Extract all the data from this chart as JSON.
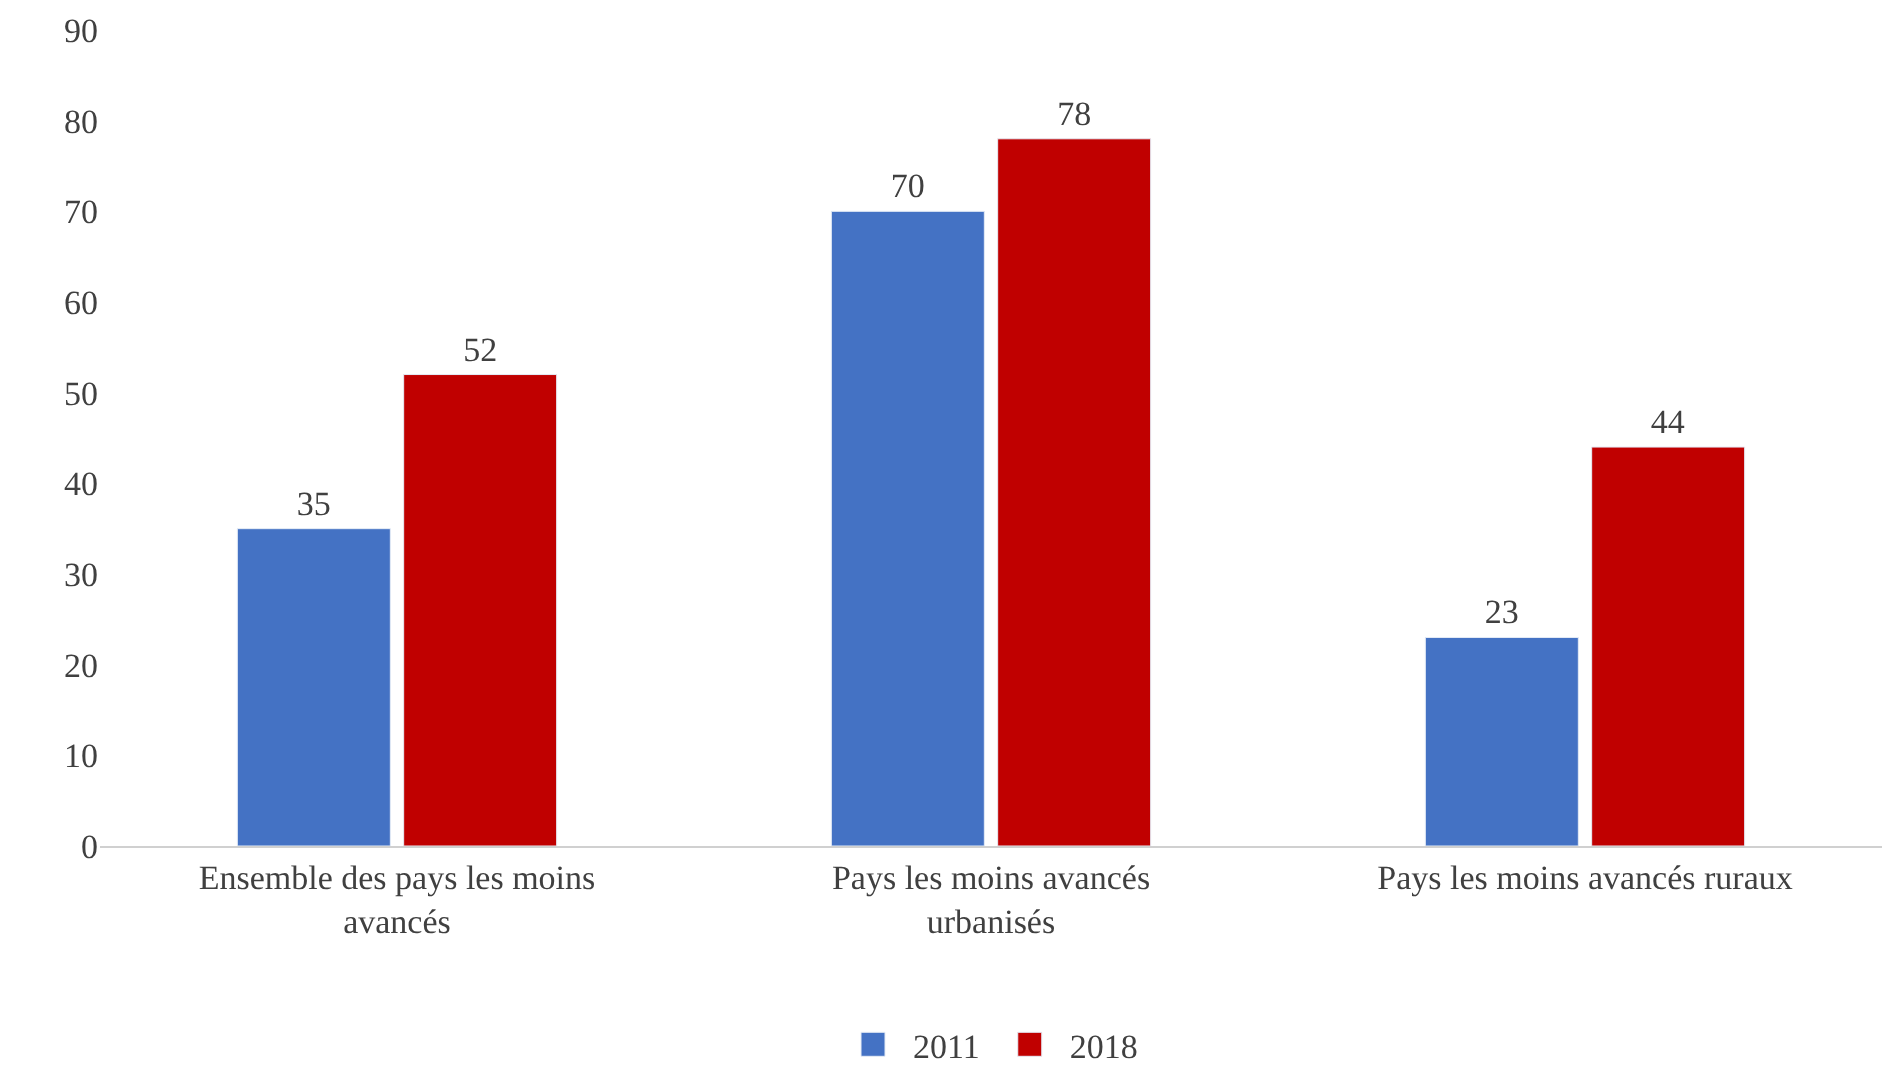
{
  "chart_data": {
    "type": "bar",
    "categories": [
      "Ensemble des pays les moins avancés",
      "Pays les moins avancés urbanisés",
      "Pays les moins avancés ruraux"
    ],
    "series": [
      {
        "name": "2011",
        "color": "#4472c4",
        "values": [
          35,
          70,
          23
        ]
      },
      {
        "name": "2018",
        "color": "#c00000",
        "values": [
          52,
          78,
          44
        ]
      }
    ],
    "ylim": [
      0,
      90
    ],
    "yticks": [
      0,
      10,
      20,
      30,
      40,
      50,
      60,
      70,
      80,
      90
    ],
    "grid": false,
    "legend": "bottom",
    "data_labels": true
  }
}
